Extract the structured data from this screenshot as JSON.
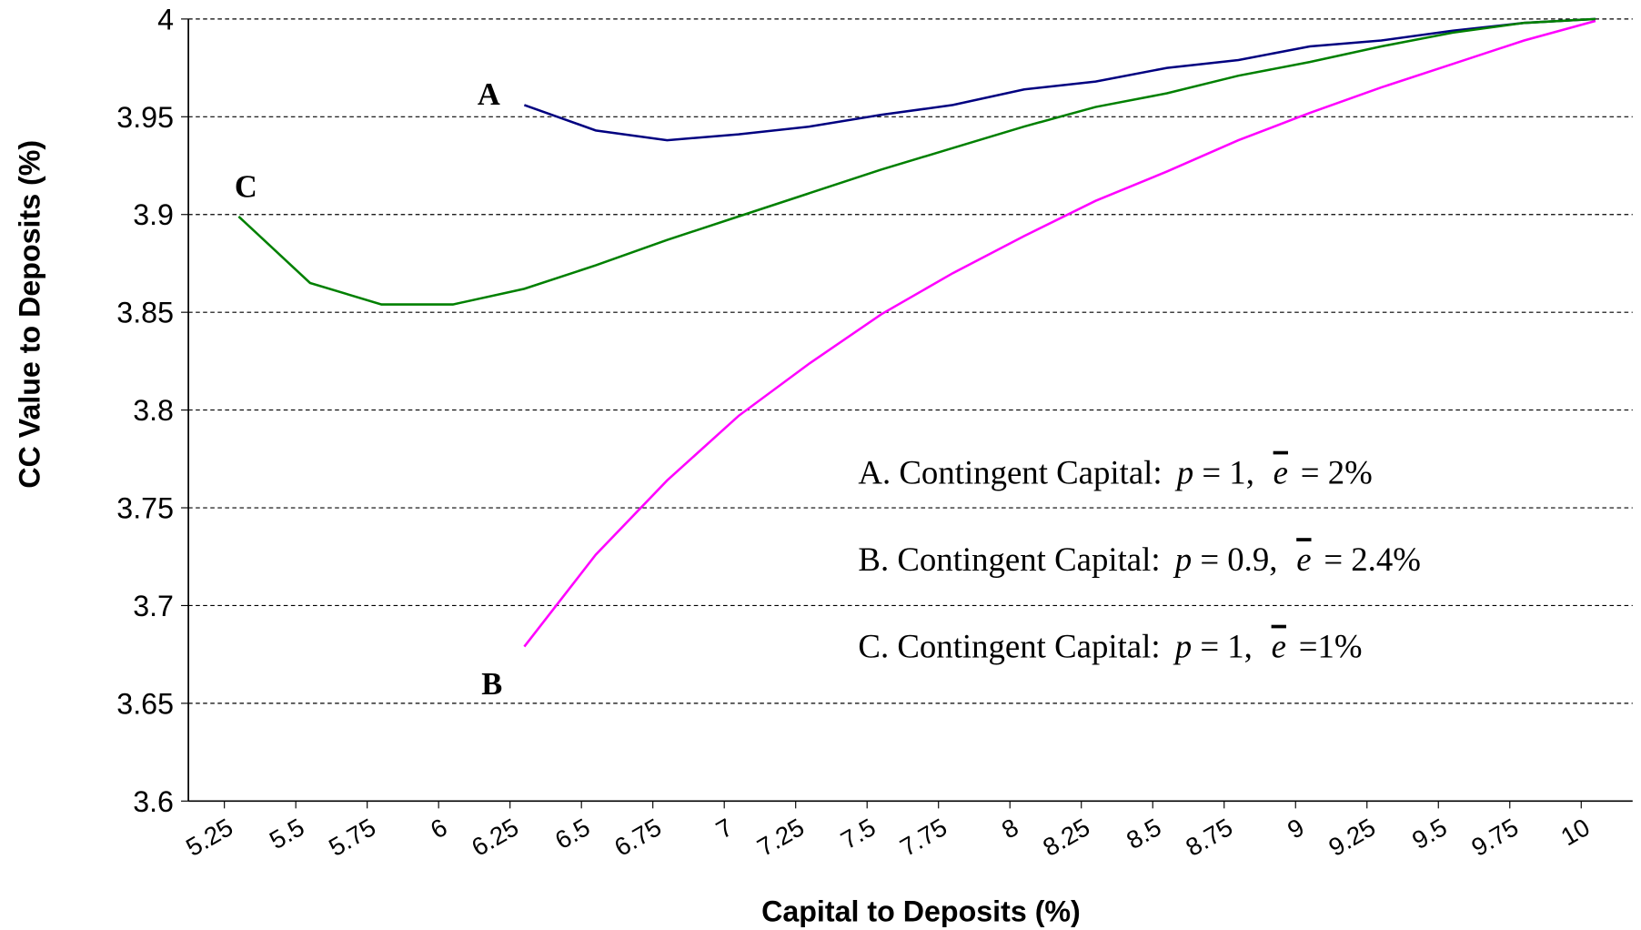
{
  "chart_data": {
    "type": "line",
    "x_label": "Capital to Deposits (%)",
    "y_label": "CC Value to Deposits (%)",
    "x": [
      5.3,
      5.55,
      5.8,
      6.05,
      6.3,
      6.55,
      6.8,
      7.05,
      7.3,
      7.55,
      7.8,
      8.05,
      8.3,
      8.55,
      8.8,
      9.05,
      9.3,
      9.55,
      9.8,
      10.05
    ],
    "series": [
      {
        "name": "A",
        "color": "#000080",
        "values": [
          null,
          null,
          null,
          null,
          3.956,
          3.943,
          3.938,
          3.941,
          3.945,
          3.951,
          3.956,
          3.964,
          3.968,
          3.975,
          3.979,
          3.986,
          3.989,
          3.994,
          3.998,
          4.0
        ]
      },
      {
        "name": "B",
        "color": "#ff00ff",
        "values": [
          null,
          null,
          null,
          null,
          3.679,
          3.726,
          3.764,
          3.797,
          3.824,
          3.849,
          3.87,
          3.889,
          3.907,
          3.922,
          3.938,
          3.952,
          3.965,
          3.977,
          3.989,
          3.999
        ]
      },
      {
        "name": "C",
        "color": "#008000",
        "values": [
          3.899,
          3.865,
          3.854,
          3.854,
          3.862,
          3.874,
          3.887,
          3.899,
          3.911,
          3.923,
          3.934,
          3.945,
          3.955,
          3.962,
          3.971,
          3.978,
          3.986,
          3.993,
          3.998,
          4.0
        ]
      }
    ],
    "legend": [
      {
        "prefix": "A. Contingent Capital:",
        "p": "p",
        "p_value": "= 1,",
        "e": "e",
        "e_value": "= 2%"
      },
      {
        "prefix": "B. Contingent Capital:",
        "p": "p",
        "p_value": "= 0.9,",
        "e": "e",
        "e_value": "= 2.4%"
      },
      {
        "prefix": "C. Contingent Capital:",
        "p": "p",
        "p_value": "= 1,",
        "e": "e",
        "e_value": "=1%"
      }
    ],
    "xlim": [
      5.124,
      10.18
    ],
    "xticks": [
      5.25,
      5.5,
      5.75,
      6,
      6.25,
      6.5,
      6.75,
      7,
      7.25,
      7.5,
      7.75,
      8,
      8.25,
      8.5,
      8.75,
      9,
      9.25,
      9.5,
      9.75,
      10
    ],
    "ylim": [
      3.6,
      4
    ],
    "yticks": [
      3.6,
      3.65,
      3.7,
      3.75,
      3.8,
      3.85,
      3.9,
      3.95,
      4
    ],
    "grid": true
  }
}
